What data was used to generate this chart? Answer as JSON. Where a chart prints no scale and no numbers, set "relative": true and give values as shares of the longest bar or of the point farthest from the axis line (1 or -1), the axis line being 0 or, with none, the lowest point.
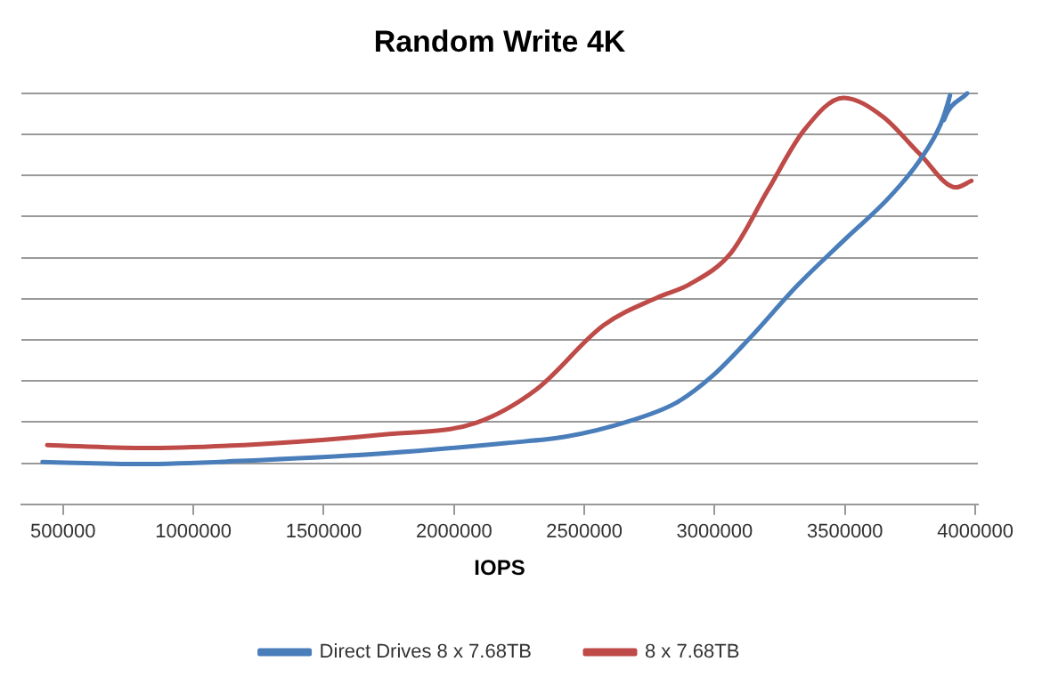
{
  "chart_data": {
    "type": "line",
    "title": "Random Write 4K",
    "xlabel": "IOPS",
    "relative": true,
    "xlim": [
      340000,
      4010000
    ],
    "xticks": [
      500000,
      1000000,
      1500000,
      2000000,
      2500000,
      3000000,
      3500000,
      4000000
    ],
    "grid": "y",
    "legend": "bottom",
    "marker": "none",
    "line_style": "solid",
    "series": [
      {
        "name": "Direct Drives 8 x 7.68TB",
        "color": "#4a7ebb",
        "x": [
          421000,
          801000,
          1267000,
          1734000,
          2200000,
          2433000,
          2666000,
          2853000,
          2993000,
          3133000,
          3320000,
          3506000,
          3669000,
          3786000,
          3868000,
          3903000,
          3880000,
          3969000
        ],
        "values": [
          0.103,
          0.098,
          0.108,
          0.124,
          0.149,
          0.165,
          0.201,
          0.247,
          0.313,
          0.403,
          0.534,
          0.648,
          0.746,
          0.836,
          0.926,
          0.995,
          0.935,
          1.0
        ]
      },
      {
        "name": "8 x 7.68TB",
        "color": "#be4b48",
        "x": [
          439000,
          801000,
          1267000,
          1734000,
          2083000,
          2317000,
          2573000,
          2783000,
          2900000,
          3063000,
          3203000,
          3343000,
          3494000,
          3646000,
          3786000,
          3926000,
          3985000
        ],
        "values": [
          0.144,
          0.137,
          0.147,
          0.17,
          0.198,
          0.28,
          0.435,
          0.504,
          0.534,
          0.612,
          0.763,
          0.91,
          0.989,
          0.943,
          0.853,
          0.771,
          0.787
        ]
      }
    ]
  }
}
